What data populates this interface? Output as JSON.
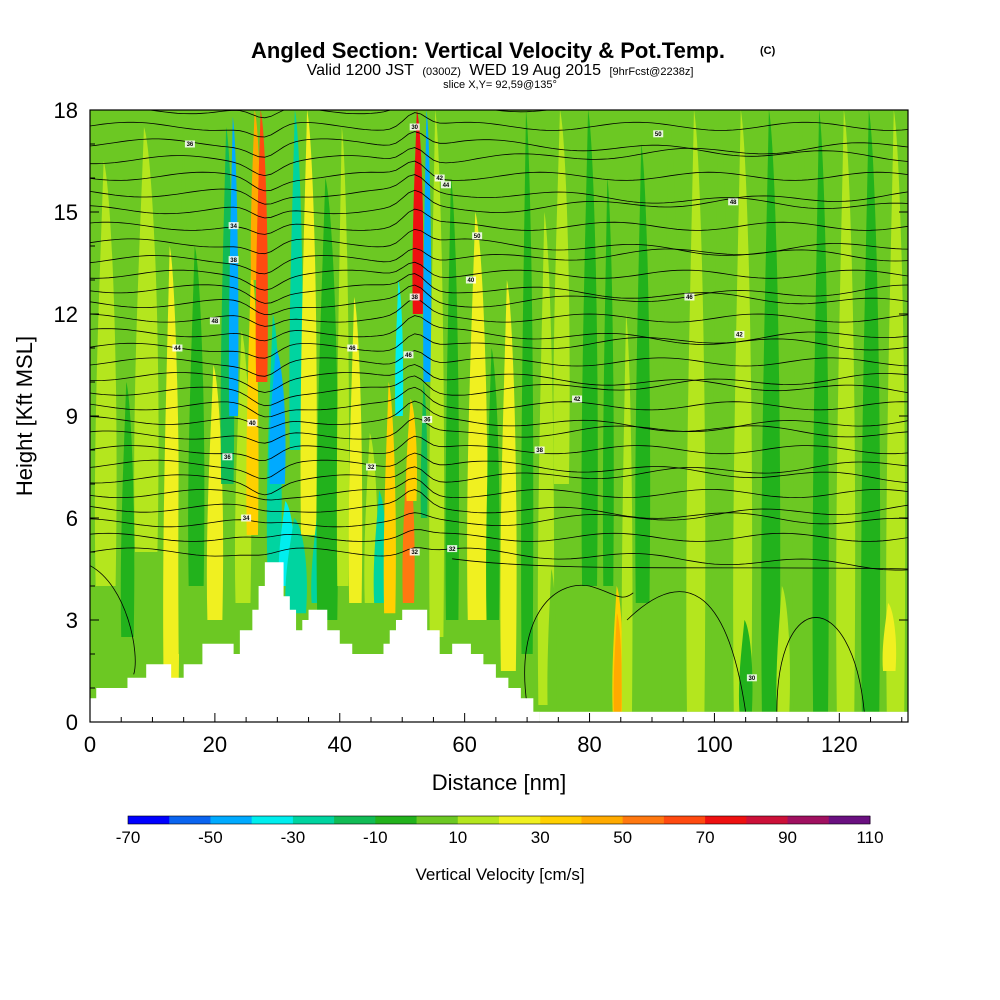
{
  "chart_data": {
    "type": "heatmap",
    "title": "Angled Section: Vertical Velocity & Pot.Temp.",
    "title_units": "(C)",
    "subtitle_prefix": "Valid 1200 JST",
    "subtitle_utc": "(0300Z)",
    "subtitle_date": "WED 19 Aug 2015",
    "subtitle_fcst": "[9hrFcst@2238z]",
    "slice_label": "slice X,Y= 92,59@135°",
    "xlabel": "Distance [nm]",
    "ylabel": "Height [Kft MSL]",
    "xlim": [
      0,
      131
    ],
    "ylim": [
      0,
      18
    ],
    "x_ticks": [
      "0",
      "20",
      "40",
      "60",
      "80",
      "100",
      "120"
    ],
    "y_ticks": [
      "0",
      "3",
      "6",
      "9",
      "12",
      "15",
      "18"
    ],
    "colorbar": {
      "title": "Vertical Velocity [cm/s]",
      "levels": [
        -70,
        -60,
        -50,
        -40,
        -30,
        -20,
        -10,
        0,
        10,
        20,
        30,
        40,
        50,
        60,
        70,
        80,
        90,
        100,
        110
      ],
      "tick_labels": [
        "-70",
        "-50",
        "-30",
        "-10",
        "10",
        "30",
        "50",
        "70",
        "90",
        "110"
      ],
      "colors": [
        "#0000ff",
        "#0a64f0",
        "#00aaff",
        "#00eeee",
        "#00d4a0",
        "#11bb55",
        "#22b21c",
        "#6cc823",
        "#b4e61e",
        "#f0f020",
        "#ffd000",
        "#ffaa00",
        "#ff7810",
        "#ff4a10",
        "#ee1010",
        "#cc1038",
        "#a01060",
        "#6a1080"
      ]
    },
    "series": [
      {
        "name": "Vertical Velocity",
        "kind": "filled-contour"
      },
      {
        "name": "Pot.Temp.",
        "kind": "line-contour"
      }
    ],
    "terrain_kft": [
      [
        0,
        0.7
      ],
      [
        1,
        1.0
      ],
      [
        6,
        1.3
      ],
      [
        9,
        1.7
      ],
      [
        12,
        1.7
      ],
      [
        13,
        1.3
      ],
      [
        15,
        1.7
      ],
      [
        18,
        2.3
      ],
      [
        22,
        2.3
      ],
      [
        23,
        2.0
      ],
      [
        24,
        2.7
      ],
      [
        26,
        3.3
      ],
      [
        27,
        4.0
      ],
      [
        28,
        4.7
      ],
      [
        30,
        4.7
      ],
      [
        31,
        3.7
      ],
      [
        32,
        3.3
      ],
      [
        33,
        2.7
      ],
      [
        34,
        3.0
      ],
      [
        35,
        3.3
      ],
      [
        37,
        3.3
      ],
      [
        38,
        2.7
      ],
      [
        40,
        2.3
      ],
      [
        42,
        2.0
      ],
      [
        46,
        2.0
      ],
      [
        47,
        2.3
      ],
      [
        48,
        2.7
      ],
      [
        49,
        3.0
      ],
      [
        50,
        3.3
      ],
      [
        53,
        3.3
      ],
      [
        54,
        2.7
      ],
      [
        56,
        2.0
      ],
      [
        58,
        2.3
      ],
      [
        60,
        2.3
      ],
      [
        61,
        2.0
      ],
      [
        63,
        1.7
      ],
      [
        65,
        1.3
      ],
      [
        67,
        1.0
      ],
      [
        69,
        0.7
      ],
      [
        71,
        0.3
      ],
      [
        72,
        0.3
      ]
    ],
    "pot_temp_labels_c": [
      "30",
      "32",
      "34",
      "36",
      "38",
      "40",
      "42",
      "44",
      "46",
      "48",
      "50"
    ]
  }
}
